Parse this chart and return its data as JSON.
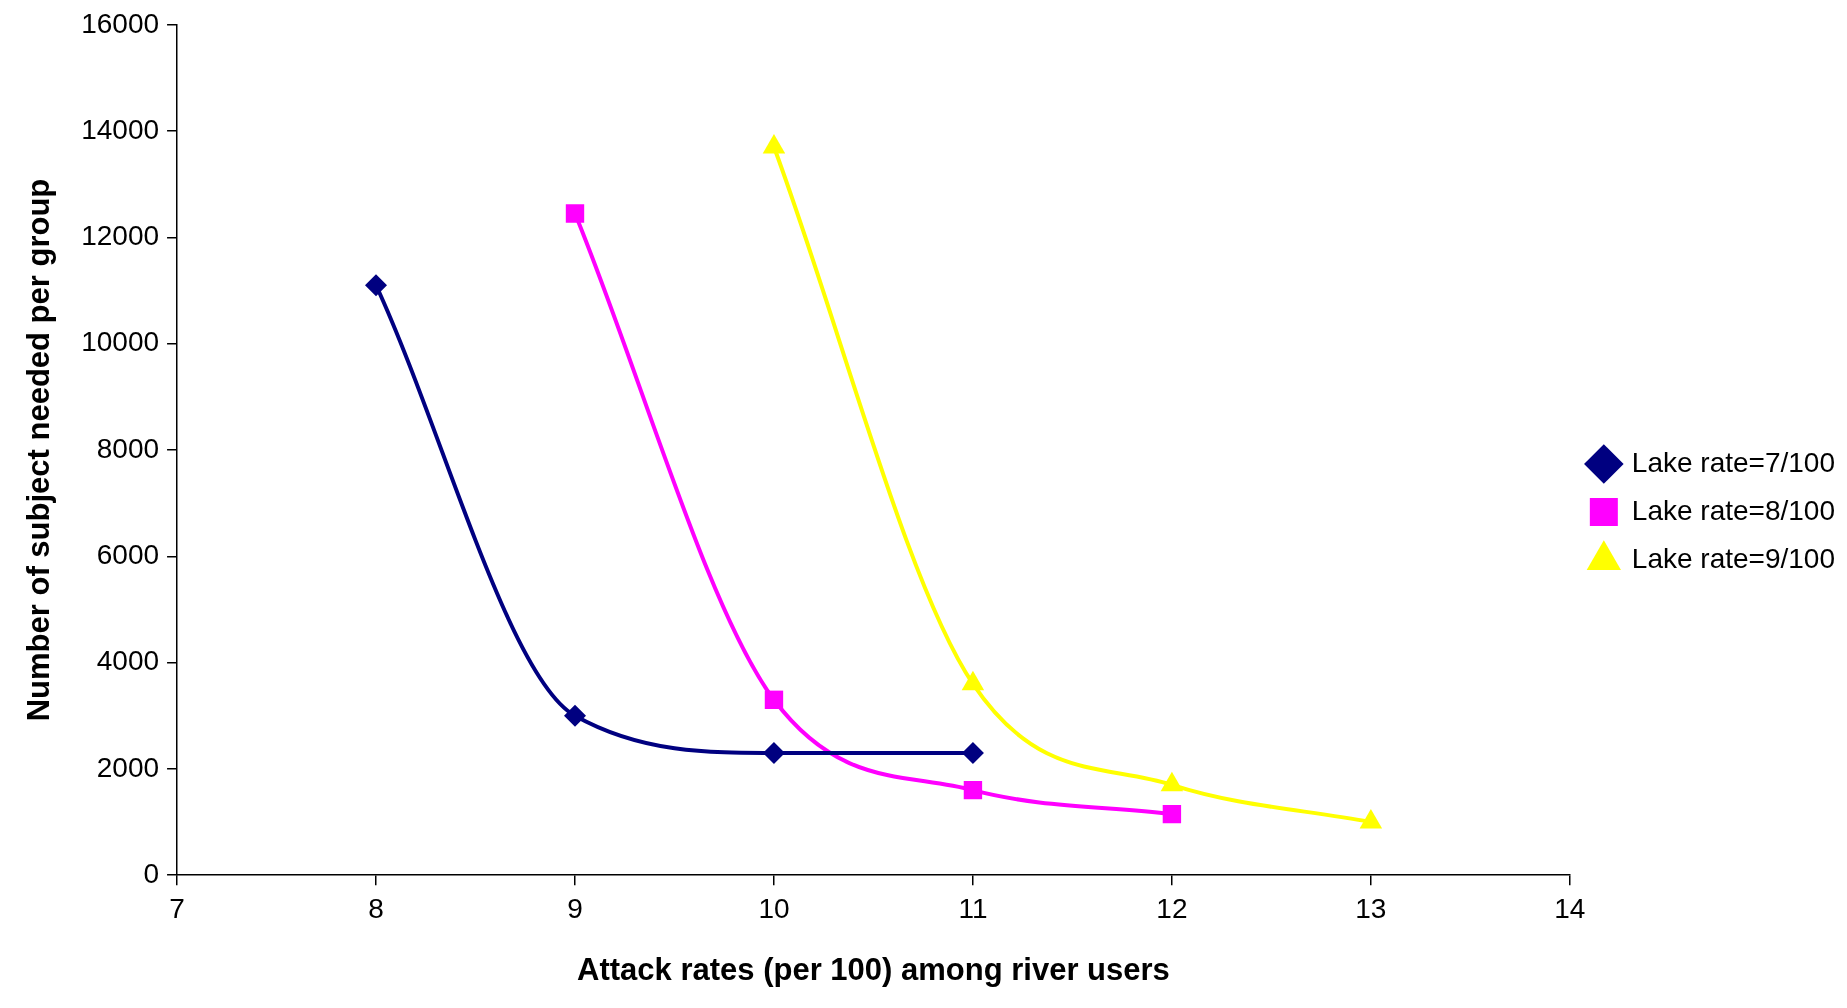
{
  "chart_data": {
    "type": "line",
    "xlabel": "Attack rates (per 100) among river users",
    "ylabel": "Number of subject needed per group",
    "xlim": [
      7,
      14
    ],
    "xticks": [
      7,
      8,
      9,
      10,
      11,
      12,
      13,
      14
    ],
    "ylim": [
      0,
      16000
    ],
    "yticks": [
      0,
      2000,
      4000,
      6000,
      8000,
      10000,
      12000,
      14000,
      16000
    ],
    "grid": false,
    "legend": "right",
    "line_style": "solid",
    "series": [
      {
        "name": "Lake rate=7/100",
        "color": "#000080",
        "marker": "diamond",
        "x": [
          8,
          9,
          10,
          11
        ],
        "values": [
          11100,
          3000,
          2300,
          2300
        ]
      },
      {
        "name": "Lake rate=8/100",
        "color": "#ff00ff",
        "marker": "square",
        "x": [
          9,
          10,
          11,
          12
        ],
        "values": [
          12450,
          3300,
          1600,
          1150
        ]
      },
      {
        "name": "Lake rate=9/100",
        "color": "#ffff00",
        "marker": "triangle",
        "x": [
          10,
          11,
          12,
          13
        ],
        "values": [
          13700,
          3600,
          1700,
          1000
        ]
      }
    ]
  }
}
